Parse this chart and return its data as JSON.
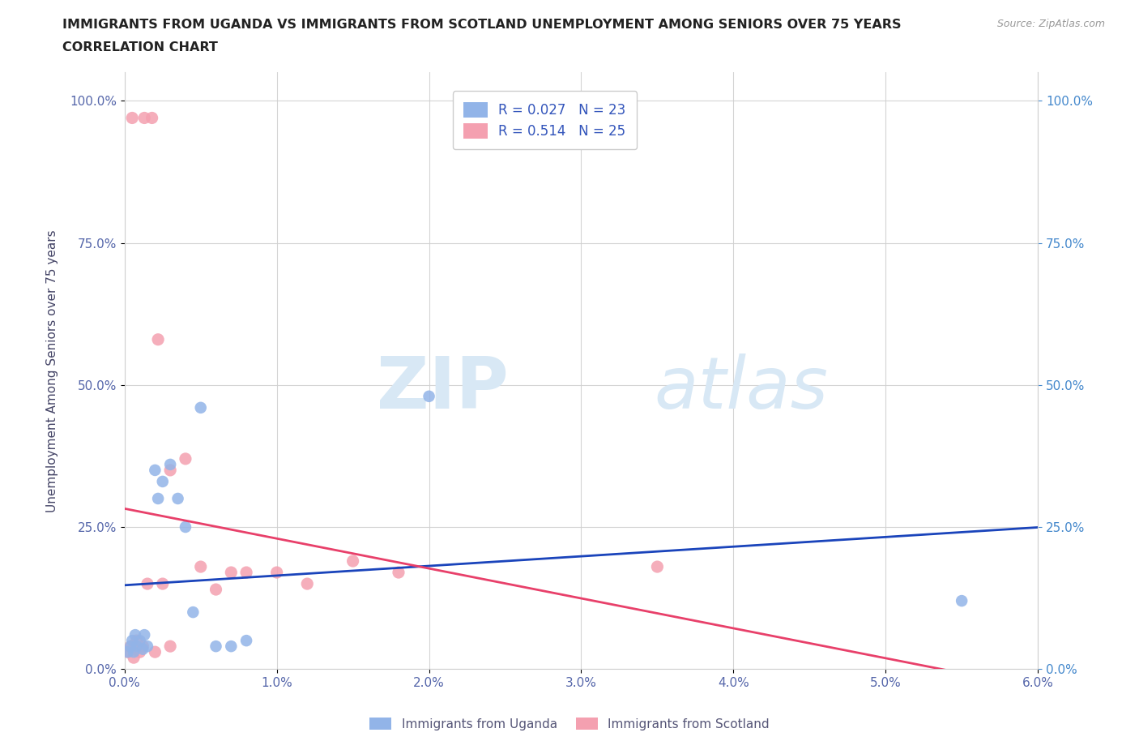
{
  "title_line1": "IMMIGRANTS FROM UGANDA VS IMMIGRANTS FROM SCOTLAND UNEMPLOYMENT AMONG SENIORS OVER 75 YEARS",
  "title_line2": "CORRELATION CHART",
  "source_text": "Source: ZipAtlas.com",
  "ylabel": "Unemployment Among Seniors over 75 years",
  "xlim": [
    0.0,
    0.06
  ],
  "ylim": [
    0.0,
    1.05
  ],
  "xticks": [
    0.0,
    0.01,
    0.02,
    0.03,
    0.04,
    0.05,
    0.06
  ],
  "xticklabels": [
    "0.0%",
    "1.0%",
    "2.0%",
    "3.0%",
    "4.0%",
    "5.0%",
    "6.0%"
  ],
  "yticks": [
    0.0,
    0.25,
    0.5,
    0.75,
    1.0
  ],
  "yticklabels": [
    "0.0%",
    "25.0%",
    "50.0%",
    "75.0%",
    "100.0%"
  ],
  "uganda_x": [
    0.0002,
    0.0004,
    0.0005,
    0.0006,
    0.0007,
    0.0008,
    0.001,
    0.0012,
    0.0013,
    0.0015,
    0.002,
    0.0022,
    0.0025,
    0.003,
    0.0035,
    0.004,
    0.0045,
    0.005,
    0.006,
    0.007,
    0.008,
    0.02,
    0.055
  ],
  "uganda_y": [
    0.03,
    0.04,
    0.05,
    0.03,
    0.06,
    0.04,
    0.05,
    0.035,
    0.06,
    0.04,
    0.35,
    0.3,
    0.33,
    0.36,
    0.3,
    0.25,
    0.1,
    0.46,
    0.04,
    0.04,
    0.05,
    0.48,
    0.12
  ],
  "scotland_x": [
    0.0002,
    0.0004,
    0.0005,
    0.0006,
    0.0008,
    0.001,
    0.0012,
    0.0013,
    0.0015,
    0.0018,
    0.002,
    0.0022,
    0.0025,
    0.003,
    0.003,
    0.004,
    0.005,
    0.006,
    0.007,
    0.008,
    0.01,
    0.012,
    0.015,
    0.018,
    0.035
  ],
  "scotland_y": [
    0.03,
    0.04,
    0.97,
    0.02,
    0.05,
    0.03,
    0.04,
    0.97,
    0.15,
    0.97,
    0.03,
    0.58,
    0.15,
    0.04,
    0.35,
    0.37,
    0.18,
    0.14,
    0.17,
    0.17,
    0.17,
    0.15,
    0.19,
    0.17,
    0.18
  ],
  "uganda_color": "#92b4e8",
  "scotland_color": "#f4a0b0",
  "uganda_line_color": "#1a44bb",
  "scotland_line_color": "#e8406a",
  "uganda_R": 0.027,
  "uganda_N": 23,
  "scotland_R": 0.514,
  "scotland_N": 25,
  "legend_R_color": "#3355bb",
  "watermark_zip": "ZIP",
  "watermark_atlas": "atlas",
  "watermark_color": "#d8e8f5",
  "grid_color": "#d0d0d0",
  "title_color": "#222222",
  "axis_label_color": "#444466",
  "tick_color": "#5566aa",
  "right_tick_color": "#4488cc"
}
